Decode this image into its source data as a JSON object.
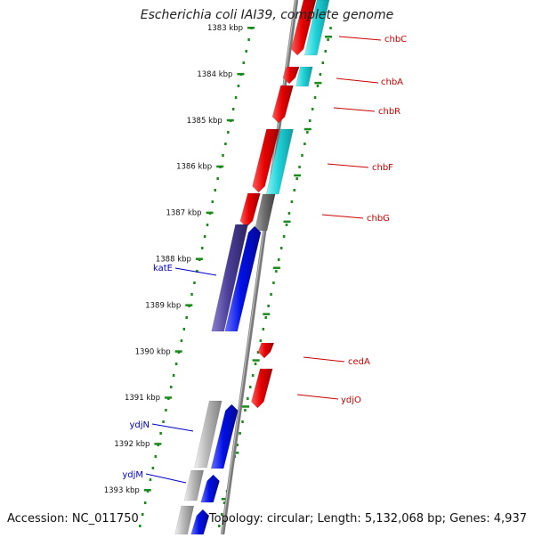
{
  "title": "Escherichia coli IAI39, complete genome",
  "footer": {
    "accession": "Accession: NC_011750",
    "summary": "Topology: circular; Length: 5,132,068 bp; Genes: 4,937"
  },
  "colors": {
    "scale_tick": "#1a8a1a",
    "backbone": "#7a7a7a",
    "gene_red": "#e60000",
    "gene_blue": "#0010e6",
    "gene_cyan": "#1fd3d8",
    "gene_purple": "#4b3f9a",
    "gene_gray": "#b8b8b8",
    "gene_darkgray": "#707070",
    "label_red": "#cc0000",
    "label_blue": "#0000cc"
  },
  "scale": {
    "unit": "kbp",
    "labels": [
      "1383 kbp",
      "1384 kbp",
      "1385 kbp",
      "1386 kbp",
      "1387 kbp",
      "1388 kbp",
      "1389 kbp",
      "1390 kbp",
      "1391 kbp",
      "1392 kbp",
      "1393 kbp"
    ]
  },
  "gene_labels": [
    {
      "name": "chbC",
      "color": "red"
    },
    {
      "name": "chbA",
      "color": "red"
    },
    {
      "name": "chbR",
      "color": "red"
    },
    {
      "name": "chbF",
      "color": "red"
    },
    {
      "name": "chbG",
      "color": "red"
    },
    {
      "name": "katE",
      "color": "blue"
    },
    {
      "name": "cedA",
      "color": "red"
    },
    {
      "name": "ydjO",
      "color": "red"
    },
    {
      "name": "ydjN",
      "color": "blue"
    },
    {
      "name": "ydjM",
      "color": "blue"
    }
  ]
}
